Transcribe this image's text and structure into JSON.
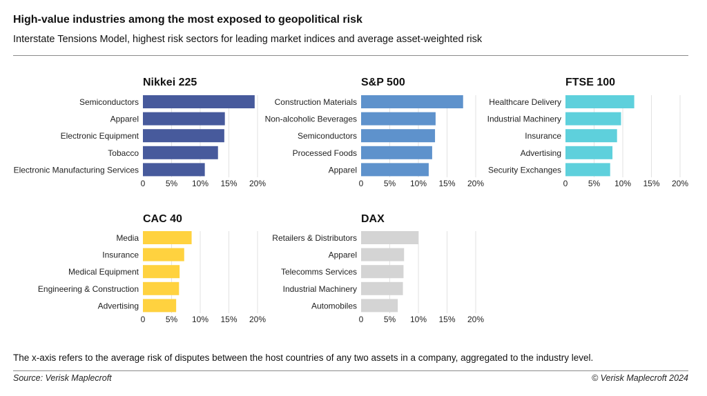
{
  "header": {
    "title": "High-value industries among the most exposed to geopolitical risk",
    "subtitle": "Interstate Tensions Model, highest risk sectors for leading market indices and average asset-weighted risk"
  },
  "footer": {
    "note": "The x-axis refers to the average risk of disputes between the host countries of any two assets in a company, aggregated to the industry level.",
    "source": "Source: Verisk Maplecroft",
    "copyright": "© Verisk Maplecroft 2024"
  },
  "chart_data": [
    {
      "type": "bar",
      "orientation": "horizontal",
      "title": "Nikkei 225",
      "color": "#475a9c",
      "categories": [
        "Semiconductors",
        "Apparel",
        "Electronic Equipment",
        "Tobacco",
        "Electronic Manufacturing Services"
      ],
      "values": [
        19.5,
        14.3,
        14.2,
        13.1,
        10.8
      ],
      "xlim": [
        0,
        20
      ],
      "xticks": [
        "0",
        "5%",
        "10%",
        "15%",
        "20%"
      ]
    },
    {
      "type": "bar",
      "orientation": "horizontal",
      "title": "S&P 500",
      "color": "#5e92cc",
      "categories": [
        "Construction Materials",
        "Non-alcoholic Beverages",
        "Semiconductors",
        "Processed Foods",
        "Apparel"
      ],
      "values": [
        17.8,
        13.0,
        12.9,
        12.4,
        11.8
      ],
      "xlim": [
        0,
        20
      ],
      "xticks": [
        "0",
        "5%",
        "10%",
        "15%",
        "20%"
      ]
    },
    {
      "type": "bar",
      "orientation": "horizontal",
      "title": "FTSE 100",
      "color": "#5ed0dc",
      "categories": [
        "Healthcare Delivery",
        "Industrial Machinery",
        "Insurance",
        "Advertising",
        "Security Exchanges"
      ],
      "values": [
        12.0,
        9.7,
        9.0,
        8.2,
        7.8
      ],
      "xlim": [
        0,
        20
      ],
      "xticks": [
        "0",
        "5%",
        "10%",
        "15%",
        "20%"
      ]
    },
    {
      "type": "bar",
      "orientation": "horizontal",
      "title": "CAC 40",
      "color": "#ffd23f",
      "categories": [
        "Media",
        "Insurance",
        "Medical Equipment",
        "Engineering & Construction",
        "Advertising"
      ],
      "values": [
        8.5,
        7.2,
        6.4,
        6.3,
        5.8
      ],
      "xlim": [
        0,
        20
      ],
      "xticks": [
        "0",
        "5%",
        "10%",
        "15%",
        "20%"
      ]
    },
    {
      "type": "bar",
      "orientation": "horizontal",
      "title": "DAX",
      "color": "#d4d4d4",
      "categories": [
        "Retailers & Distributors",
        "Apparel",
        "Telecomms Services",
        "Industrial Machinery",
        "Automobiles"
      ],
      "values": [
        10.0,
        7.5,
        7.4,
        7.3,
        6.4
      ],
      "xlim": [
        0,
        20
      ],
      "xticks": [
        "0",
        "5%",
        "10%",
        "15%",
        "20%"
      ]
    }
  ]
}
